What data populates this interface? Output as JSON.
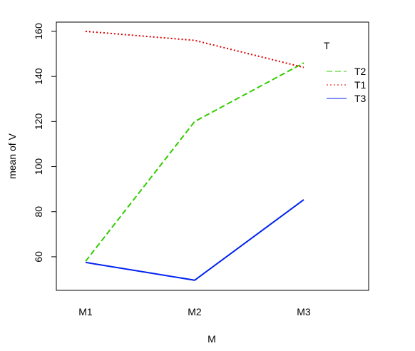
{
  "chart_data": {
    "type": "line",
    "x_label": "M",
    "y_label": "mean of V",
    "legend_title": "T",
    "categories": [
      "M1",
      "M2",
      "M3"
    ],
    "series": [
      {
        "name": "T2",
        "color": "#33cc00",
        "dash": "dashed",
        "values": [
          58,
          120,
          146
        ]
      },
      {
        "name": "T1",
        "color": "#dd0000",
        "dash": "dotted",
        "values": [
          160,
          156,
          144
        ]
      },
      {
        "name": "T3",
        "color": "#0022ee",
        "dash": "solid",
        "values": [
          57.5,
          49.6,
          85.3
        ]
      }
    ],
    "ylim": [
      45.1,
      164.1
    ],
    "yticks": [
      60,
      80,
      100,
      120,
      140,
      160
    ]
  }
}
